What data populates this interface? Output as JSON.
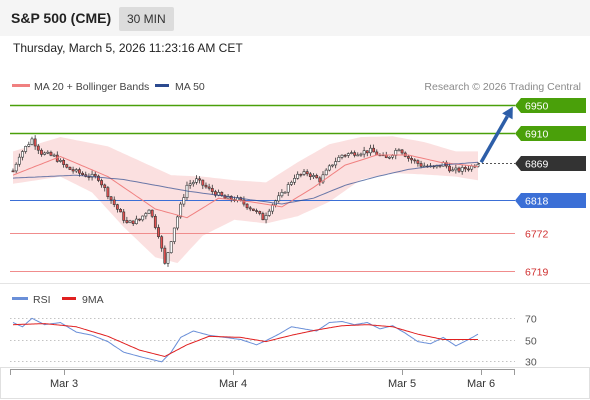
{
  "header": {
    "title": "S&P 500 (CME)",
    "timeframe": "30 MIN"
  },
  "datetime": "Thursday, March 5, 2026 11:23:16 AM CET",
  "legend": {
    "bollinger": "MA 20 + Bollinger Bands",
    "ma50": "MA 50",
    "credit": "Research © 2026 Trading Central",
    "rsi": "RSI",
    "rsi_ma": "9MA"
  },
  "colors": {
    "up_candle": "#ffffff",
    "down_candle": "#e05050",
    "wick": "#333333",
    "ma20": "#f08080",
    "bands_fill": "#fadada",
    "ma50": "#2c4a8f",
    "resistance": "#4aa00a",
    "pivot": "#3b6fd6",
    "support": "#f08c8c",
    "support_text": "#d03030",
    "current": "#333333",
    "rsi": "#6a8fd8",
    "rsi_ma": "#e02020",
    "arrow": "#2d5ea8"
  },
  "chart_data": [
    {
      "type": "candlestick",
      "series": [
        {
          "name": "MA 20 + Bollinger Bands"
        },
        {
          "name": "MA 50"
        }
      ],
      "price_axis": {
        "ylim": [
          6705,
          6962
        ]
      },
      "levels": [
        {
          "name": "resistance",
          "value": 6950,
          "label": "6950"
        },
        {
          "name": "resistance",
          "value": 6910,
          "label": "6910"
        },
        {
          "name": "current",
          "value": 6869,
          "label": "6869"
        },
        {
          "name": "pivot",
          "value": 6818,
          "label": "6818"
        },
        {
          "name": "support",
          "value": 6772,
          "label": "6772"
        },
        {
          "name": "support",
          "value": 6719,
          "label": "6719"
        }
      ],
      "x_ticks": [
        "Mar 3",
        "Mar 4",
        "Mar 5",
        "Mar 6"
      ],
      "anchors": [
        {
          "t": 0,
          "p": 6858
        },
        {
          "t": 2,
          "p": 6880
        },
        {
          "t": 6,
          "p": 6902
        },
        {
          "t": 9,
          "p": 6883
        },
        {
          "t": 13,
          "p": 6878
        },
        {
          "t": 17,
          "p": 6862
        },
        {
          "t": 22,
          "p": 6853
        },
        {
          "t": 27,
          "p": 6848
        },
        {
          "t": 31,
          "p": 6818
        },
        {
          "t": 36,
          "p": 6785
        },
        {
          "t": 40,
          "p": 6790
        },
        {
          "t": 43,
          "p": 6806
        },
        {
          "t": 46,
          "p": 6770
        },
        {
          "t": 48,
          "p": 6728
        },
        {
          "t": 51,
          "p": 6780
        },
        {
          "t": 55,
          "p": 6838
        },
        {
          "t": 58,
          "p": 6845
        },
        {
          "t": 62,
          "p": 6832
        },
        {
          "t": 67,
          "p": 6820
        },
        {
          "t": 71,
          "p": 6818
        },
        {
          "t": 76,
          "p": 6804
        },
        {
          "t": 79,
          "p": 6792
        },
        {
          "t": 82,
          "p": 6812
        },
        {
          "t": 85,
          "p": 6825
        },
        {
          "t": 89,
          "p": 6850
        },
        {
          "t": 93,
          "p": 6855
        },
        {
          "t": 97,
          "p": 6845
        },
        {
          "t": 101,
          "p": 6868
        },
        {
          "t": 104,
          "p": 6880
        },
        {
          "t": 108,
          "p": 6883
        },
        {
          "t": 113,
          "p": 6886
        },
        {
          "t": 118,
          "p": 6875
        },
        {
          "t": 122,
          "p": 6890
        },
        {
          "t": 125,
          "p": 6876
        },
        {
          "t": 129,
          "p": 6866
        },
        {
          "t": 133,
          "p": 6862
        },
        {
          "t": 136,
          "p": 6868
        },
        {
          "t": 139,
          "p": 6858
        },
        {
          "t": 142,
          "p": 6860
        },
        {
          "t": 145,
          "p": 6864
        },
        {
          "t": 147,
          "p": 6870
        }
      ],
      "ma20": [
        {
          "t": 0,
          "p": 6852
        },
        {
          "t": 15,
          "p": 6878
        },
        {
          "t": 30,
          "p": 6850
        },
        {
          "t": 45,
          "p": 6805
        },
        {
          "t": 55,
          "p": 6793
        },
        {
          "t": 65,
          "p": 6820
        },
        {
          "t": 75,
          "p": 6815
        },
        {
          "t": 85,
          "p": 6808
        },
        {
          "t": 95,
          "p": 6835
        },
        {
          "t": 105,
          "p": 6866
        },
        {
          "t": 115,
          "p": 6880
        },
        {
          "t": 125,
          "p": 6880
        },
        {
          "t": 135,
          "p": 6870
        },
        {
          "t": 147,
          "p": 6864
        }
      ],
      "band_upper": [
        {
          "t": 0,
          "p": 6885
        },
        {
          "t": 15,
          "p": 6905
        },
        {
          "t": 30,
          "p": 6892
        },
        {
          "t": 40,
          "p": 6872
        },
        {
          "t": 50,
          "p": 6852
        },
        {
          "t": 60,
          "p": 6850
        },
        {
          "t": 70,
          "p": 6845
        },
        {
          "t": 80,
          "p": 6842
        },
        {
          "t": 90,
          "p": 6870
        },
        {
          "t": 100,
          "p": 6895
        },
        {
          "t": 110,
          "p": 6905
        },
        {
          "t": 120,
          "p": 6906
        },
        {
          "t": 130,
          "p": 6898
        },
        {
          "t": 140,
          "p": 6885
        },
        {
          "t": 147,
          "p": 6885
        }
      ],
      "band_lower": [
        {
          "t": 0,
          "p": 6840
        },
        {
          "t": 15,
          "p": 6850
        },
        {
          "t": 25,
          "p": 6828
        },
        {
          "t": 35,
          "p": 6780
        },
        {
          "t": 45,
          "p": 6738
        },
        {
          "t": 52,
          "p": 6730
        },
        {
          "t": 60,
          "p": 6768
        },
        {
          "t": 70,
          "p": 6790
        },
        {
          "t": 80,
          "p": 6785
        },
        {
          "t": 90,
          "p": 6795
        },
        {
          "t": 100,
          "p": 6815
        },
        {
          "t": 110,
          "p": 6846
        },
        {
          "t": 120,
          "p": 6855
        },
        {
          "t": 130,
          "p": 6853
        },
        {
          "t": 140,
          "p": 6850
        },
        {
          "t": 147,
          "p": 6845
        }
      ],
      "ma50": [
        {
          "t": 0,
          "p": 6848
        },
        {
          "t": 20,
          "p": 6852
        },
        {
          "t": 35,
          "p": 6846
        },
        {
          "t": 45,
          "p": 6838
        },
        {
          "t": 55,
          "p": 6830
        },
        {
          "t": 65,
          "p": 6824
        },
        {
          "t": 75,
          "p": 6818
        },
        {
          "t": 85,
          "p": 6812
        },
        {
          "t": 95,
          "p": 6820
        },
        {
          "t": 105,
          "p": 6838
        },
        {
          "t": 115,
          "p": 6850
        },
        {
          "t": 125,
          "p": 6860
        },
        {
          "t": 135,
          "p": 6866
        },
        {
          "t": 147,
          "p": 6870
        }
      ],
      "arrow": {
        "from": {
          "t": 148,
          "p": 6870
        },
        "to": {
          "t": 158,
          "p": 6947
        }
      }
    },
    {
      "type": "line",
      "series": [
        {
          "name": "RSI"
        },
        {
          "name": "9MA"
        }
      ],
      "ylim": [
        25,
        75
      ],
      "y_ticks": [
        70,
        50,
        30
      ],
      "rsi": [
        {
          "t": 0,
          "p": 66
        },
        {
          "t": 3,
          "p": 62
        },
        {
          "t": 6,
          "p": 70
        },
        {
          "t": 10,
          "p": 64
        },
        {
          "t": 15,
          "p": 66
        },
        {
          "t": 20,
          "p": 57
        },
        {
          "t": 25,
          "p": 54
        },
        {
          "t": 30,
          "p": 48
        },
        {
          "t": 35,
          "p": 38
        },
        {
          "t": 40,
          "p": 34
        },
        {
          "t": 44,
          "p": 31
        },
        {
          "t": 47,
          "p": 29
        },
        {
          "t": 50,
          "p": 38
        },
        {
          "t": 53,
          "p": 52
        },
        {
          "t": 57,
          "p": 58
        },
        {
          "t": 62,
          "p": 54
        },
        {
          "t": 67,
          "p": 52
        },
        {
          "t": 72,
          "p": 50
        },
        {
          "t": 77,
          "p": 45
        },
        {
          "t": 80,
          "p": 49
        },
        {
          "t": 84,
          "p": 55
        },
        {
          "t": 88,
          "p": 62
        },
        {
          "t": 92,
          "p": 60
        },
        {
          "t": 96,
          "p": 58
        },
        {
          "t": 100,
          "p": 66
        },
        {
          "t": 104,
          "p": 67
        },
        {
          "t": 108,
          "p": 64
        },
        {
          "t": 112,
          "p": 66
        },
        {
          "t": 116,
          "p": 60
        },
        {
          "t": 120,
          "p": 63
        },
        {
          "t": 124,
          "p": 56
        },
        {
          "t": 128,
          "p": 48
        },
        {
          "t": 132,
          "p": 46
        },
        {
          "t": 136,
          "p": 52
        },
        {
          "t": 140,
          "p": 44
        },
        {
          "t": 144,
          "p": 50
        },
        {
          "t": 147,
          "p": 55
        }
      ],
      "rsi_ma": [
        {
          "t": 0,
          "p": 64
        },
        {
          "t": 10,
          "p": 65
        },
        {
          "t": 20,
          "p": 62
        },
        {
          "t": 30,
          "p": 53
        },
        {
          "t": 40,
          "p": 40
        },
        {
          "t": 48,
          "p": 34
        },
        {
          "t": 55,
          "p": 45
        },
        {
          "t": 62,
          "p": 53
        },
        {
          "t": 72,
          "p": 52
        },
        {
          "t": 80,
          "p": 48
        },
        {
          "t": 88,
          "p": 54
        },
        {
          "t": 96,
          "p": 59
        },
        {
          "t": 104,
          "p": 63
        },
        {
          "t": 112,
          "p": 64
        },
        {
          "t": 120,
          "p": 62
        },
        {
          "t": 128,
          "p": 55
        },
        {
          "t": 136,
          "p": 50
        },
        {
          "t": 147,
          "p": 50
        }
      ]
    }
  ]
}
